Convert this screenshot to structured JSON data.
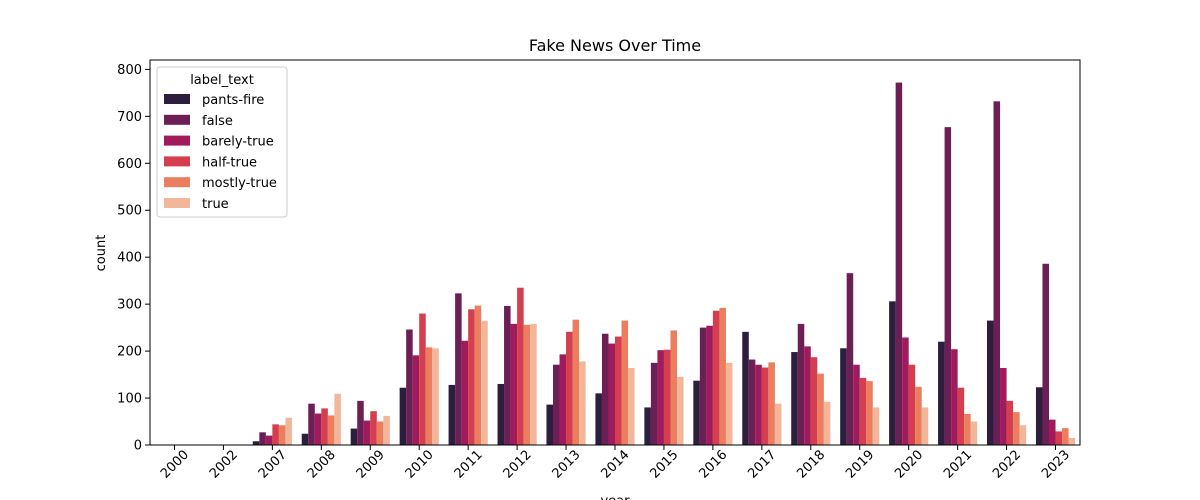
{
  "chart_data": {
    "type": "bar",
    "title": "Fake News Over Time",
    "xlabel": "year",
    "ylabel": "count",
    "ylim": [
      0,
      820
    ],
    "yticks": [
      0,
      100,
      200,
      300,
      400,
      500,
      600,
      700,
      800
    ],
    "grid": false,
    "legend": {
      "title": "label_text",
      "placement": "top-left"
    },
    "categories": [
      "2000",
      "2002",
      "2007",
      "2008",
      "2009",
      "2010",
      "2011",
      "2012",
      "2013",
      "2014",
      "2015",
      "2016",
      "2017",
      "2018",
      "2019",
      "2020",
      "2021",
      "2022",
      "2023"
    ],
    "series": [
      {
        "name": "pants-fire",
        "color": "#2d1e3e",
        "values": [
          0,
          0,
          8,
          24,
          35,
          122,
          128,
          130,
          86,
          110,
          80,
          137,
          241,
          198,
          206,
          306,
          220,
          265,
          123
        ]
      },
      {
        "name": "false",
        "color": "#6b1f55",
        "values": [
          1,
          1,
          27,
          88,
          94,
          246,
          323,
          296,
          171,
          237,
          175,
          250,
          182,
          258,
          366,
          772,
          677,
          732,
          386
        ]
      },
      {
        "name": "barely-true",
        "color": "#a11a5b",
        "values": [
          0,
          0,
          20,
          67,
          52,
          191,
          222,
          258,
          193,
          216,
          202,
          254,
          171,
          210,
          171,
          229,
          204,
          164,
          54
        ]
      },
      {
        "name": "half-true",
        "color": "#d53e4f",
        "values": [
          0,
          0,
          44,
          78,
          72,
          280,
          289,
          335,
          241,
          231,
          203,
          286,
          165,
          187,
          143,
          171,
          122,
          94,
          29
        ]
      },
      {
        "name": "mostly-true",
        "color": "#ea7e5e",
        "values": [
          0,
          0,
          42,
          63,
          50,
          208,
          297,
          256,
          267,
          265,
          244,
          292,
          176,
          152,
          136,
          124,
          66,
          70,
          36
        ]
      },
      {
        "name": "true",
        "color": "#f2b69a",
        "values": [
          0,
          0,
          58,
          109,
          62,
          206,
          264,
          258,
          178,
          164,
          145,
          175,
          88,
          92,
          80,
          80,
          50,
          42,
          15
        ]
      }
    ]
  }
}
